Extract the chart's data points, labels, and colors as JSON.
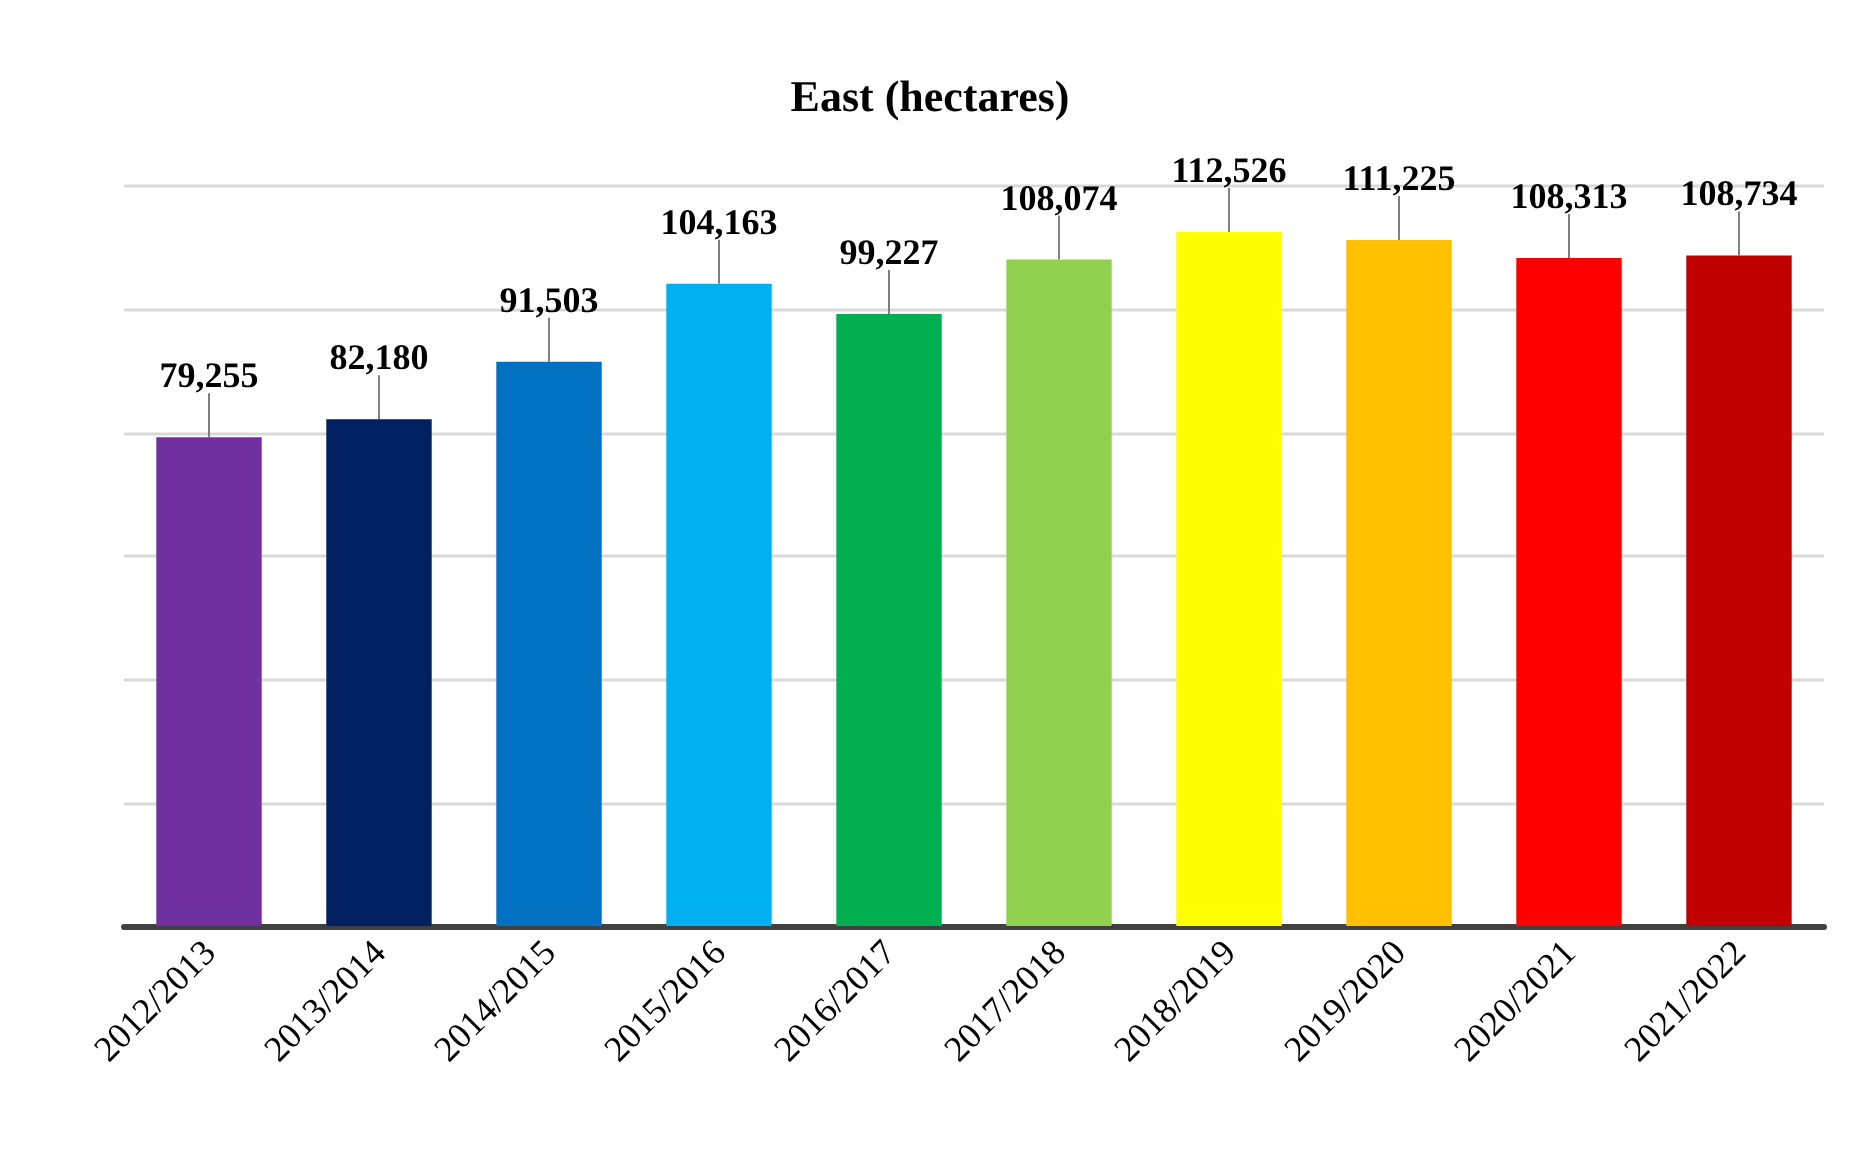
{
  "chart_data": {
    "type": "bar",
    "title": "East (hectares)",
    "categories": [
      "2012/2013",
      "2013/2014",
      "2014/2015",
      "2015/2016",
      "2016/2017",
      "2017/2018",
      "2018/2019",
      "2019/2020",
      "2020/2021",
      "2021/2022"
    ],
    "values": [
      79255,
      82180,
      91503,
      104163,
      99227,
      108074,
      112526,
      111225,
      108313,
      108734
    ],
    "value_labels": [
      "79,255",
      "82,180",
      "91,503",
      "104,163",
      "99,227",
      "108,074",
      "112,526",
      "111,225",
      "108,313",
      "108,734"
    ],
    "colors": [
      "#7030a0",
      "#002060",
      "#0070c0",
      "#00b0f0",
      "#00b050",
      "#92d050",
      "#ffff00",
      "#ffc000",
      "#ff0000",
      "#c00000"
    ],
    "tick_labels": "x",
    "grid": "y"
  }
}
